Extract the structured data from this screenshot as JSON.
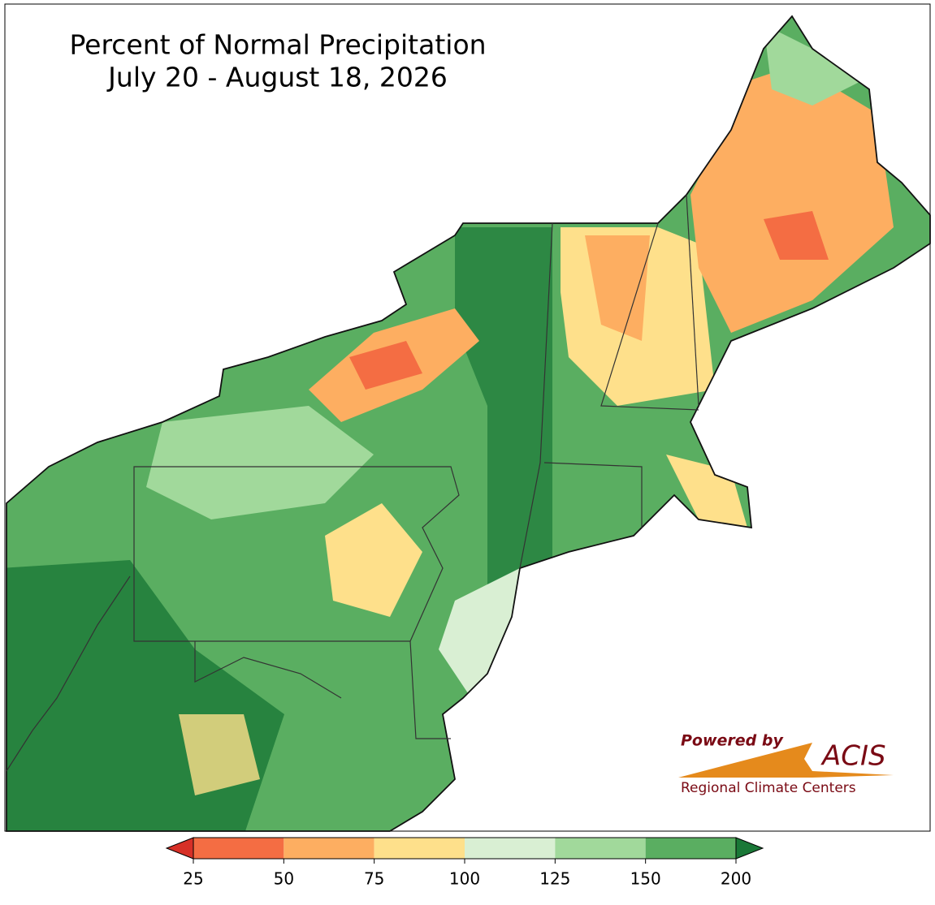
{
  "title": "Percent of Normal Precipitation",
  "subtitle": "July 20 - August 18, 2026",
  "colorbar": {
    "ticks": [
      25,
      50,
      75,
      100,
      125,
      150,
      200
    ],
    "colors": [
      "#f46d43",
      "#fdae61",
      "#fee08b",
      "#d9efd3",
      "#a1d99b",
      "#5aae61"
    ],
    "under_color": "#d73027",
    "over_color": "#1a7837"
  },
  "logo": {
    "powered_by": "Powered by",
    "name": "ACIS",
    "tagline": "Regional Climate Centers"
  }
}
